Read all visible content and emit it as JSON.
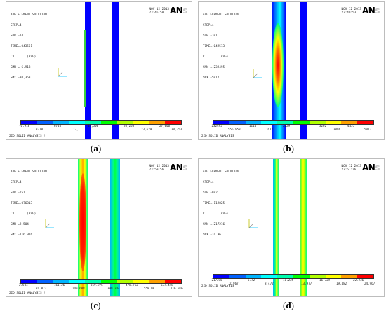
{
  "logo": {
    "text": "AN",
    "accent": "#c6c6c6"
  },
  "colorbar_colors": [
    "#0000ff",
    "#0060ff",
    "#00b4ff",
    "#00ffff",
    "#00ffb0",
    "#00ff00",
    "#b0ff00",
    "#ffff00",
    "#ffa000",
    "#ff0000"
  ],
  "panels": [
    {
      "caption": "a",
      "title": "AVG ELEMENT SOLUTION",
      "lines": [
        "STEP=4",
        "SUB =14",
        "TIME=.043551",
        "CJ       (AVG)",
        "SMN =-6.918",
        "SMX =30,353"
      ],
      "date": "NOV 12 2013",
      "time": "23:46:50",
      "footer": "2ID SOLID ANALYSIS !",
      "ticks_top": [
        "-6.918",
        "13,",
        "13,500",
        "20,253",
        "27,006"
      ],
      "ticks_bottom": [
        "3270",
        "6746",
        "",
        "23,629",
        "30,353"
      ]
    },
    {
      "caption": "b",
      "title": "AVG ELEMENT SOLUTION",
      "lines": [
        "STEP=4",
        "SUB =101",
        "TIME=.049513",
        "CJ       (AVG)",
        "SMN =.232495",
        "SMX =5012"
      ],
      "date": "NOV 12 2013",
      "time": "23:49:53",
      "footer": "2ID SOLID ANALYSIS !",
      "ticks_top": [
        ".232495",
        "1114",
        "1672",
        "2229",
        "3262"
      ],
      "ticks_bottom": [
        "556.953",
        "",
        "",
        "3896",
        "4455",
        "5012"
      ]
    },
    {
      "caption": "c",
      "title": "AVG ELEMENT SOLUTION",
      "lines": [
        "STEP=4",
        "SUB =251",
        "TIME=.076313",
        "CJ       (AVG)",
        "SMN =2.504",
        "SMX =716.916"
      ],
      "date": "NOV 12 2013",
      "time": "23:50:56",
      "footer": "2ID SOLID ANALYSIS !",
      "ticks_top": [
        "2.504",
        "161.26",
        "319.976",
        "478.712",
        "637.448"
      ],
      "ticks_bottom": [
        "81.872",
        "240.608",
        "399.344",
        "558.08",
        "716.916"
      ]
    },
    {
      "caption": "d",
      "title": "AVG ELEMENT SOLUTION",
      "lines": [
        "STEP=4",
        "SUB =802",
        "TIME=.112825",
        "CJ       (AVG)",
        "SMN =.217216",
        "SMX =24.967"
      ],
      "date": "NOV 12 2013",
      "time": "23:51:26",
      "footer": "2ID SOLID ANALYSIS !",
      "ticks_top": [
        ".217216",
        "5.72",
        "11.225",
        "16.729",
        "22.236"
      ],
      "ticks_bottom": [
        "2.967",
        "8.472",
        "13.977",
        "19.482",
        "24.967"
      ]
    }
  ]
}
